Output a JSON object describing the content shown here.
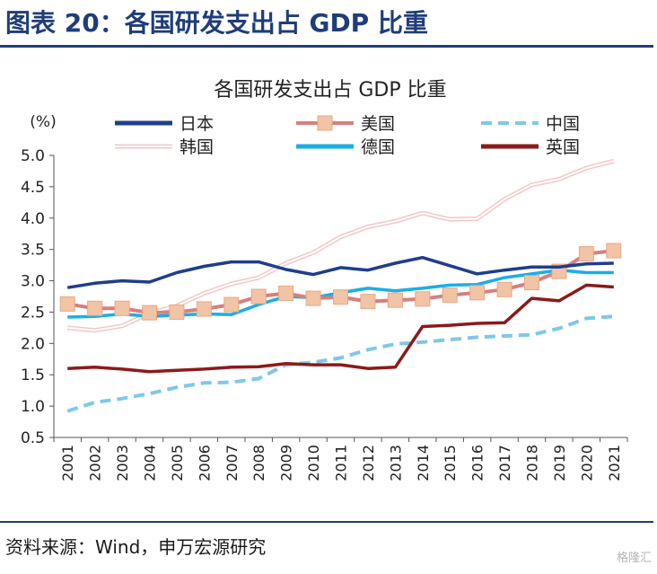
{
  "header": {
    "title": "图表 20：各国研发支出占 GDP 比重"
  },
  "footer": {
    "source": "资料来源：Wind，申万宏源研究",
    "watermark": "格隆汇"
  },
  "chart_data": {
    "type": "line",
    "title": "各国研发支出占 GDP 比重",
    "ylabel": "(%)",
    "xlabel": "",
    "ylim": [
      0.5,
      5.0
    ],
    "yticks": [
      "0.5",
      "1.0",
      "1.5",
      "2.0",
      "2.5",
      "3.0",
      "3.5",
      "4.0",
      "4.5",
      "5.0"
    ],
    "x": [
      "2001",
      "2002",
      "2003",
      "2004",
      "2005",
      "2006",
      "2007",
      "2008",
      "2009",
      "2010",
      "2011",
      "2012",
      "2013",
      "2014",
      "2015",
      "2016",
      "2017",
      "2018",
      "2019",
      "2020",
      "2021"
    ],
    "grid": false,
    "legend": "top",
    "series": [
      {
        "name": "日本",
        "color": "#1f3d8c",
        "style": "solid",
        "values": [
          2.89,
          2.96,
          3.0,
          2.98,
          3.13,
          3.23,
          3.3,
          3.3,
          3.18,
          3.1,
          3.21,
          3.17,
          3.28,
          3.37,
          3.24,
          3.11,
          3.17,
          3.22,
          3.22,
          3.27,
          3.28
        ]
      },
      {
        "name": "美国",
        "color": "#d77f7f",
        "style": "square-marker",
        "values": [
          2.63,
          2.56,
          2.56,
          2.49,
          2.5,
          2.55,
          2.62,
          2.75,
          2.8,
          2.72,
          2.74,
          2.67,
          2.69,
          2.71,
          2.77,
          2.81,
          2.86,
          2.97,
          3.15,
          3.43,
          3.48
        ]
      },
      {
        "name": "中国",
        "color": "#7fc8e6",
        "style": "dashed",
        "values": [
          0.92,
          1.06,
          1.12,
          1.2,
          1.3,
          1.37,
          1.38,
          1.44,
          1.66,
          1.7,
          1.77,
          1.9,
          1.99,
          2.02,
          2.06,
          2.1,
          2.12,
          2.14,
          2.24,
          2.4,
          2.43
        ]
      },
      {
        "name": "韩国",
        "color": "#f2c8c8",
        "style": "double",
        "values": [
          2.25,
          2.21,
          2.28,
          2.48,
          2.6,
          2.8,
          2.95,
          3.05,
          3.28,
          3.45,
          3.7,
          3.86,
          3.95,
          4.08,
          3.98,
          3.99,
          4.3,
          4.53,
          4.62,
          4.8,
          4.91
        ]
      },
      {
        "name": "德国",
        "color": "#1aaee5",
        "style": "solid",
        "values": [
          2.42,
          2.43,
          2.47,
          2.43,
          2.45,
          2.47,
          2.46,
          2.62,
          2.75,
          2.73,
          2.81,
          2.88,
          2.84,
          2.88,
          2.93,
          2.94,
          3.05,
          3.11,
          3.17,
          3.13,
          3.13
        ]
      },
      {
        "name": "英国",
        "color": "#8b1a1a",
        "style": "solid",
        "values": [
          1.6,
          1.62,
          1.59,
          1.55,
          1.57,
          1.59,
          1.62,
          1.63,
          1.68,
          1.66,
          1.66,
          1.6,
          1.62,
          2.27,
          2.29,
          2.32,
          2.33,
          2.72,
          2.68,
          2.93,
          2.9
        ]
      }
    ]
  }
}
